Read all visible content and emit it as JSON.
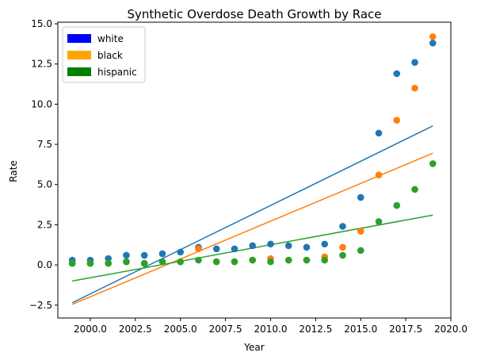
{
  "chart_data": {
    "type": "scatter",
    "title": "Synthetic Overdose Death Growth by Race",
    "xlabel": "Year",
    "ylabel": "Rate",
    "xlim": [
      1998.2,
      2020.0
    ],
    "ylim": [
      -3.3,
      15.1
    ],
    "x_ticks": [
      2000,
      2002.5,
      2005,
      2007.5,
      2010,
      2012.5,
      2015,
      2017.5,
      2020
    ],
    "x_tick_labels": [
      "2000.0",
      "2002.5",
      "2005.0",
      "2007.5",
      "2010.0",
      "2012.5",
      "2015.0",
      "2017.5",
      "2020.0"
    ],
    "y_ticks": [
      -2.5,
      0,
      2.5,
      5,
      7.5,
      10,
      12.5,
      15
    ],
    "y_tick_labels": [
      "−2.5",
      "0.0",
      "2.5",
      "5.0",
      "7.5",
      "10.0",
      "12.5",
      "15.0"
    ],
    "grid": false,
    "legend_position": "top-left",
    "x": [
      1999,
      2000,
      2001,
      2002,
      2003,
      2004,
      2005,
      2006,
      2007,
      2008,
      2009,
      2010,
      2011,
      2012,
      2013,
      2014,
      2015,
      2016,
      2017,
      2018,
      2019
    ],
    "series": [
      {
        "name": "white",
        "color": "#1f77b4",
        "legend_color": "#0000ff",
        "values": [
          0.3,
          0.3,
          0.4,
          0.6,
          0.6,
          0.7,
          0.8,
          1.1,
          1.0,
          1.0,
          1.2,
          1.3,
          1.2,
          1.1,
          1.3,
          2.4,
          4.2,
          8.2,
          11.9,
          12.6,
          13.8
        ],
        "trend": [
          -2.35,
          8.65
        ]
      },
      {
        "name": "black",
        "color": "#ff7f0e",
        "legend_color": "#ffa500",
        "values": [
          0.1,
          0.1,
          0.1,
          0.2,
          0.1,
          0.2,
          0.2,
          1.0,
          0.2,
          0.2,
          0.3,
          0.4,
          0.3,
          0.3,
          0.5,
          1.1,
          2.1,
          5.6,
          9.0,
          11.0,
          14.2
        ],
        "trend": [
          -2.45,
          6.95
        ]
      },
      {
        "name": "hispanic",
        "color": "#2ca02c",
        "legend_color": "#008000",
        "values": [
          0.1,
          0.1,
          0.1,
          0.2,
          0.1,
          0.2,
          0.2,
          0.3,
          0.2,
          0.2,
          0.3,
          0.2,
          0.3,
          0.3,
          0.3,
          0.6,
          0.9,
          2.7,
          3.7,
          4.7,
          6.3
        ],
        "trend": [
          -1.0,
          3.1
        ]
      }
    ]
  }
}
